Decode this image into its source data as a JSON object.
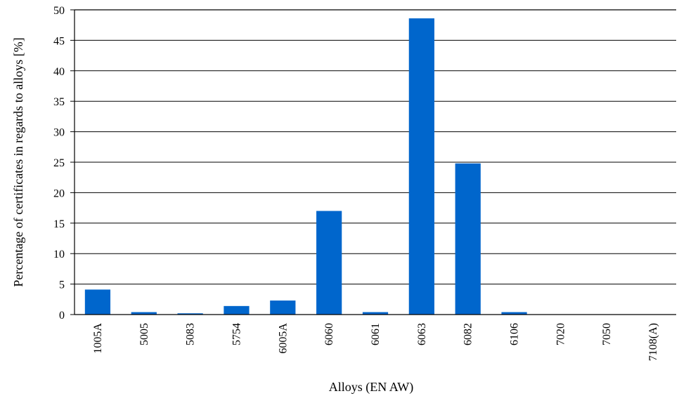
{
  "chart_data": {
    "type": "bar",
    "title": "",
    "xlabel": "Alloys (EN AW)",
    "ylabel": "Percentage of certificates in regards to alloys [%]",
    "ylim": [
      0,
      50
    ],
    "yticks": [
      0,
      5,
      10,
      15,
      20,
      25,
      30,
      35,
      40,
      45,
      50
    ],
    "grid": true,
    "legend": "none",
    "categories": [
      "1005A",
      "5005",
      "5083",
      "5754",
      "6005A",
      "6060",
      "6061",
      "6063",
      "6082",
      "6106",
      "7020",
      "7050",
      "7108(A)"
    ],
    "values": [
      4.1,
      0.4,
      0.2,
      1.4,
      2.3,
      17.0,
      0.4,
      48.6,
      24.8,
      0.4,
      0.0,
      0.0,
      0.0
    ],
    "bar_color": "#0066CC"
  }
}
